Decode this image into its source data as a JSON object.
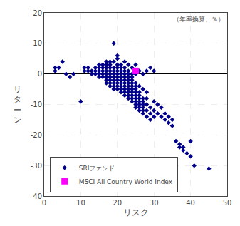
{
  "chart_data": {
    "type": "scatter",
    "xlabel": "リスク",
    "ylabel": "リ\nタ\nー\nン",
    "annotation": "（年率換算、％）",
    "xlim": [
      0,
      50
    ],
    "ylim": [
      -40,
      20
    ],
    "xticks": [
      0,
      10,
      20,
      30,
      40,
      50
    ],
    "yticks": [
      -40,
      -30,
      -20,
      -10,
      0,
      10,
      20
    ],
    "grid": true,
    "legend": "lower left",
    "series": [
      {
        "name": "SRIファンド",
        "color": "#00008B",
        "marker": "diamond",
        "x": [
          3,
          3,
          4,
          5,
          6,
          7,
          8,
          10,
          11,
          11,
          12,
          12,
          13,
          13,
          14,
          14,
          14,
          15,
          15,
          15,
          15,
          15,
          16,
          16,
          16,
          16,
          16,
          17,
          17,
          17,
          17,
          17,
          17,
          17,
          17,
          18,
          18,
          18,
          18,
          18,
          18,
          18,
          18,
          18,
          19,
          19,
          19,
          19,
          19,
          19,
          19,
          19,
          19,
          19,
          20,
          20,
          20,
          20,
          20,
          20,
          20,
          20,
          20,
          20,
          20,
          21,
          21,
          21,
          21,
          21,
          21,
          21,
          21,
          21,
          21,
          22,
          22,
          22,
          22,
          22,
          22,
          22,
          22,
          22,
          22,
          22,
          23,
          23,
          23,
          23,
          23,
          23,
          23,
          23,
          23,
          23,
          23,
          24,
          24,
          24,
          24,
          24,
          24,
          24,
          24,
          24,
          24,
          24,
          25,
          25,
          25,
          25,
          25,
          25,
          25,
          25,
          25,
          25,
          25,
          26,
          26,
          26,
          26,
          26,
          26,
          26,
          26,
          26,
          27,
          27,
          27,
          27,
          27,
          27,
          27,
          27,
          28,
          28,
          28,
          28,
          28,
          28,
          29,
          29,
          29,
          29,
          30,
          30,
          30,
          30,
          31,
          31,
          32,
          32,
          33,
          33,
          34,
          34,
          35,
          35,
          36,
          37,
          37,
          38,
          38,
          39,
          40,
          40,
          41,
          45
        ],
        "values": [
          2,
          1,
          2,
          4,
          0,
          -1,
          0,
          -9,
          1,
          2,
          1,
          2,
          0,
          1,
          0,
          1,
          2,
          0,
          -1,
          1,
          2,
          3,
          -1,
          0,
          1,
          2,
          3,
          -3,
          -2,
          -1,
          0,
          1,
          2,
          3,
          4,
          -4,
          -3,
          -2,
          -1,
          0,
          1,
          2,
          3,
          4,
          -5,
          -4,
          -3,
          -2,
          -1,
          0,
          1,
          2,
          4,
          10,
          -5,
          -4,
          -3,
          -2,
          -1,
          0,
          1,
          2,
          3,
          5,
          6,
          -6,
          -5,
          -4,
          -3,
          -2,
          -1,
          0,
          1,
          2,
          3,
          -7,
          -6,
          -5,
          -4,
          -3,
          -2,
          -1,
          0,
          1,
          2,
          4,
          -8,
          -7,
          -6,
          -5,
          -4,
          -3,
          -2,
          -1,
          0,
          1,
          3,
          -9,
          -8,
          -7,
          -6,
          -5,
          -4,
          -3,
          -2,
          -1,
          0,
          2,
          -11,
          -10,
          -9,
          -8,
          -7,
          -6,
          -5,
          -4,
          -3,
          0,
          3,
          -12,
          -11,
          -10,
          -9,
          -8,
          -7,
          -6,
          -4,
          1,
          -13,
          -12,
          -11,
          -10,
          -9,
          -8,
          -5,
          0,
          -14,
          -12,
          -10,
          -8,
          -6,
          1,
          -15,
          -13,
          -11,
          2,
          -14,
          -12,
          -9,
          1,
          -13,
          -10,
          -14,
          -11,
          -15,
          -13,
          -16,
          -14,
          -17,
          -15,
          -22,
          -23,
          -24,
          -24,
          -25,
          -26,
          -22,
          -27,
          -30,
          -31
        ]
      },
      {
        "name": "MSCI All Country World Index",
        "color": "#FF00FF",
        "marker": "square",
        "x": [
          25
        ],
        "values": [
          1
        ]
      }
    ]
  }
}
